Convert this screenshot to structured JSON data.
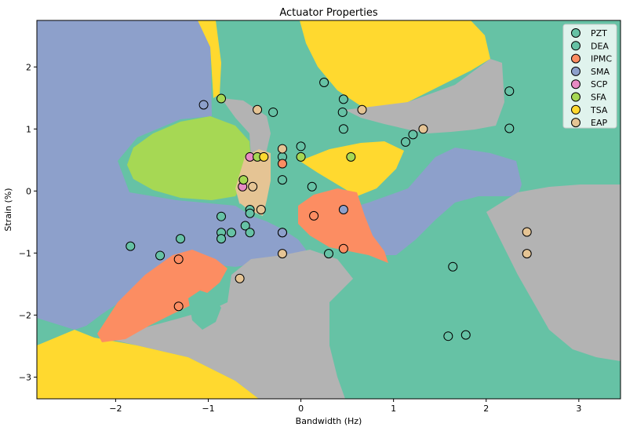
{
  "chart_data": {
    "type": "scatter",
    "title": "Actuator Properties",
    "xlabel": "Bandwidth (Hz)",
    "ylabel": "Strain (%)",
    "xlim": [
      -2.85,
      3.45
    ],
    "ylim": [
      -3.35,
      2.75
    ],
    "xticks": [
      -2,
      -1,
      0,
      1,
      2,
      3
    ],
    "yticks": [
      -3,
      -2,
      -1,
      0,
      1,
      2
    ],
    "legend_position": "top-right",
    "background": "decision regions (PZT, IPMC, SMA, TSA, EAP colored areas)",
    "series": [
      {
        "name": "PZT",
        "color": "#66c2a5",
        "points": [
          [
            0.25,
            1.75
          ],
          [
            0.46,
            1.48
          ],
          [
            0.45,
            1.27
          ],
          [
            0.46,
            1.0
          ],
          [
            -0.3,
            1.27
          ],
          [
            2.25,
            1.61
          ],
          [
            2.25,
            1.01
          ],
          [
            1.21,
            0.91
          ],
          [
            1.13,
            0.79
          ],
          [
            0.0,
            0.72
          ],
          [
            -0.2,
            0.55
          ],
          [
            -0.2,
            0.18
          ],
          [
            0.12,
            0.07
          ],
          [
            -0.55,
            -0.3
          ],
          [
            -0.55,
            -0.36
          ],
          [
            -0.6,
            -0.56
          ],
          [
            -0.55,
            -0.67
          ],
          [
            -0.75,
            -0.67
          ],
          [
            -0.86,
            -0.67
          ],
          [
            -0.86,
            -0.77
          ],
          [
            -0.86,
            -0.41
          ],
          [
            -1.3,
            -0.77
          ],
          [
            -1.52,
            -1.04
          ],
          [
            -1.84,
            -0.89
          ],
          [
            -0.2,
            -0.67
          ],
          [
            0.3,
            -1.01
          ],
          [
            1.64,
            -1.22
          ],
          [
            1.59,
            -2.34
          ],
          [
            1.78,
            -2.32
          ]
        ]
      },
      {
        "name": "DEA",
        "color": "#66c2a5",
        "points": []
      },
      {
        "name": "IPMC",
        "color": "#fc8d62",
        "points": [
          [
            -0.2,
            0.44
          ],
          [
            0.14,
            -0.4
          ],
          [
            0.46,
            -0.93
          ],
          [
            -1.32,
            -1.1
          ],
          [
            -1.32,
            -1.86
          ]
        ]
      },
      {
        "name": "SMA",
        "color": "#8da0cb",
        "points": [
          [
            -1.05,
            1.39
          ],
          [
            0.46,
            -0.3
          ],
          [
            -0.2,
            -0.67
          ]
        ]
      },
      {
        "name": "SCP",
        "color": "#e78ac3",
        "points": [
          [
            -0.55,
            0.55
          ],
          [
            -0.63,
            0.07
          ]
        ]
      },
      {
        "name": "SFA",
        "color": "#a6d854",
        "points": [
          [
            -0.86,
            1.49
          ],
          [
            -0.47,
            0.55
          ],
          [
            -0.62,
            0.18
          ],
          [
            0.0,
            0.55
          ],
          [
            0.54,
            0.55
          ]
        ]
      },
      {
        "name": "TSA",
        "color": "#ffd92f",
        "points": [
          [
            -0.4,
            0.55
          ]
        ]
      },
      {
        "name": "EAP",
        "color": "#e5c494",
        "points": [
          [
            -0.47,
            1.31
          ],
          [
            0.66,
            1.31
          ],
          [
            1.32,
            1.0
          ],
          [
            -0.2,
            0.68
          ],
          [
            -0.52,
            0.07
          ],
          [
            -0.43,
            -0.3
          ],
          [
            -0.2,
            -1.01
          ],
          [
            -0.66,
            -1.41
          ],
          [
            2.44,
            -0.66
          ],
          [
            2.44,
            -1.01
          ]
        ]
      }
    ]
  }
}
